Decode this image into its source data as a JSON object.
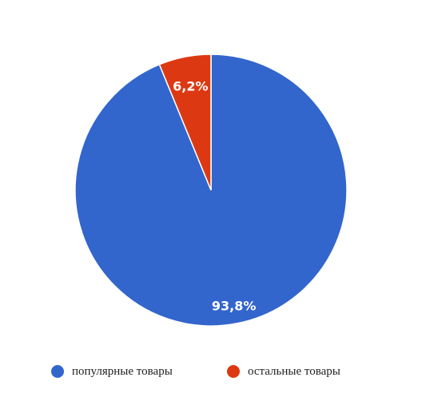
{
  "chart_data": {
    "type": "pie",
    "categories": [
      "популярные товары",
      "остальные товары"
    ],
    "values": [
      93.8,
      6.2
    ],
    "labels": [
      "93,8%",
      "6,2%"
    ],
    "colors": [
      "#3366cc",
      "#dc3912"
    ],
    "legend": "bottom",
    "start_angle_deg": 0,
    "direction": "clockwise"
  }
}
